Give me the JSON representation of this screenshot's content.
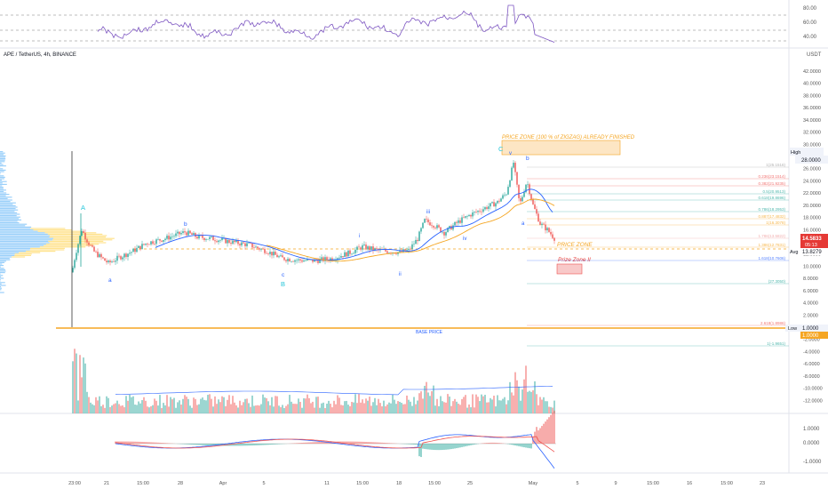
{
  "symbol_title": "APE / TetherUS, 4h, BINANCE",
  "currency": "USDT",
  "colors": {
    "up": "#26a69a",
    "down": "#ef5350",
    "orange": "#f5a623",
    "blue_ma": "#2962ff",
    "rsi": "#7e57c2",
    "fib_text": "#9c9c9c",
    "price_badge": "#e53935",
    "base_line": "#f5a623"
  },
  "rsi_panel": {
    "ticks": [
      "80.00",
      "60.00",
      "40.00"
    ]
  },
  "price_axis": {
    "ticks": [
      "42.0000",
      "40.0000",
      "38.0000",
      "36.0000",
      "34.0000",
      "32.0000",
      "30.0000",
      "28.0000",
      "26.0000",
      "24.0000",
      "22.0000",
      "20.0000",
      "18.0000",
      "16.0000",
      "14.0000",
      "12.0000",
      "10.0000",
      "8.0000",
      "6.0000",
      "4.0000",
      "2.0000",
      "0.0000",
      "-2.0000",
      "-4.0000",
      "-6.0000",
      "-8.0000",
      "-10.0000",
      "-12.0000"
    ],
    "high_label": "High",
    "high_value": "28.0000",
    "current_price": "14.5833",
    "countdown": "05:13",
    "avg_label": "Avg",
    "avg_value": "13.8279",
    "low_label": "Low",
    "low_value": "1.0000",
    "low_value2": "1.0000"
  },
  "macd_panel": {
    "ticks": [
      "1.0000",
      "0.0000",
      "-1.0000"
    ]
  },
  "time_axis": [
    "23:00",
    "21",
    "15:00",
    "28",
    "Apr",
    "5",
    "11",
    "15:00",
    "18",
    "15:00",
    "25",
    "May",
    "5",
    "9",
    "15:00",
    "16",
    "15:00",
    "23"
  ],
  "wave_labels": {
    "A": "A",
    "a": "a",
    "b": "b",
    "c": "c",
    "B": "B",
    "i": "i",
    "ii": "ii",
    "iii": "iii",
    "iv": "iv",
    "v": "v",
    "C": "C",
    "b2": "b",
    "a2": "a"
  },
  "annotations": {
    "price_zone_full": "PRICE ZONE (100 % of ZIGZAG) ALREADY FINISHED",
    "price_zone": "PRICE ZONE",
    "prize_zone_ii": "Prize Zone II",
    "base_price": "BASE PRICE"
  },
  "fib_labels": [
    "1(25.1516)",
    "0.236(23.1514)",
    "0.382(21.9235)",
    "0.5(20.9513)",
    "0.618(19.8696)",
    "0.786(18.2953)",
    "0.887(17.4832)",
    "1(16.3078)",
    "1.786(13.5822)",
    "1.386(12.7831)",
    "1.618(10.7606)",
    "2.618(1.8986)",
    "(27.3050)",
    "1(-1.9651)"
  ],
  "chart_data": {
    "type": "candlestick",
    "title": "APE / TetherUS, 4h, BINANCE",
    "ylim": [
      -12,
      43
    ],
    "annotated_levels": {
      "high": 28.0,
      "current_price": 14.5833,
      "avg": 13.8279,
      "low": 1.0
    },
    "close_path_approx": [
      {
        "x": "23:00",
        "y": 11.0
      },
      {
        "x": "21",
        "y": 10.5
      },
      {
        "x": "15:00",
        "y": 12.5
      },
      {
        "x": "28",
        "y": 15.5
      },
      {
        "x": "Apr",
        "y": 14.0
      },
      {
        "x": "5",
        "y": 13.0
      },
      {
        "x": "11",
        "y": 11.0
      },
      {
        "x": "15:00",
        "y": 12.0
      },
      {
        "x": "18",
        "y": 12.5
      },
      {
        "x": "15:00",
        "y": 17.5
      },
      {
        "x": "25",
        "y": 20.0
      },
      {
        "x": "v",
        "y": 27.0
      },
      {
        "x": "May",
        "y": 14.58
      }
    ]
  }
}
